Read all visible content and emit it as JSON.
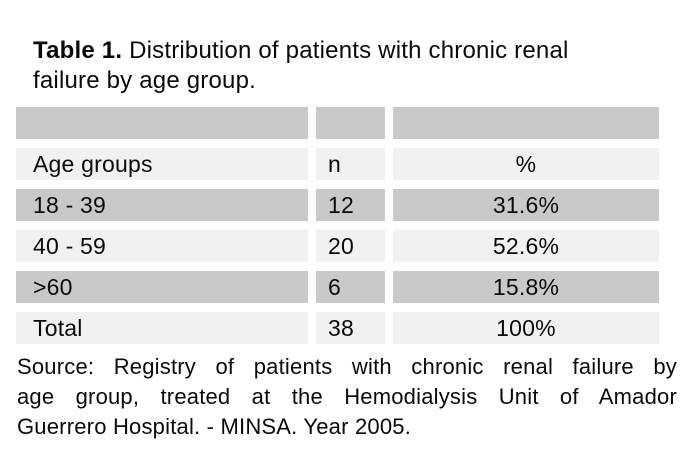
{
  "title": {
    "label": "Table 1.",
    "line1_rest": "Distribution of patients with chronic renal",
    "line2": "failure by age group."
  },
  "table": {
    "header_labels": {
      "col1": "Age groups",
      "col2": "n",
      "col3": "%"
    },
    "rows": [
      {
        "c1": "18 - 39",
        "c2": "12",
        "c3": "31.6%"
      },
      {
        "c1": "40 - 59",
        "c2": "20",
        "c3": "52.6%"
      },
      {
        "c1": ">60",
        "c2": "6",
        "c3": "15.8%"
      },
      {
        "c1": "Total",
        "c2": "38",
        "c3": "100%"
      }
    ],
    "colors": {
      "shaded_row": "#c9c9c9",
      "light_row": "#f1f1f1",
      "gutter": "#ffffff"
    }
  },
  "source_note": {
    "lines": [
      "Source: Registry of patients with chronic renal failure by",
      "age group, treated at the Hemodialysis Unit of Amador",
      "Guerrero Hospital. - MINSA. Year 2005."
    ]
  }
}
